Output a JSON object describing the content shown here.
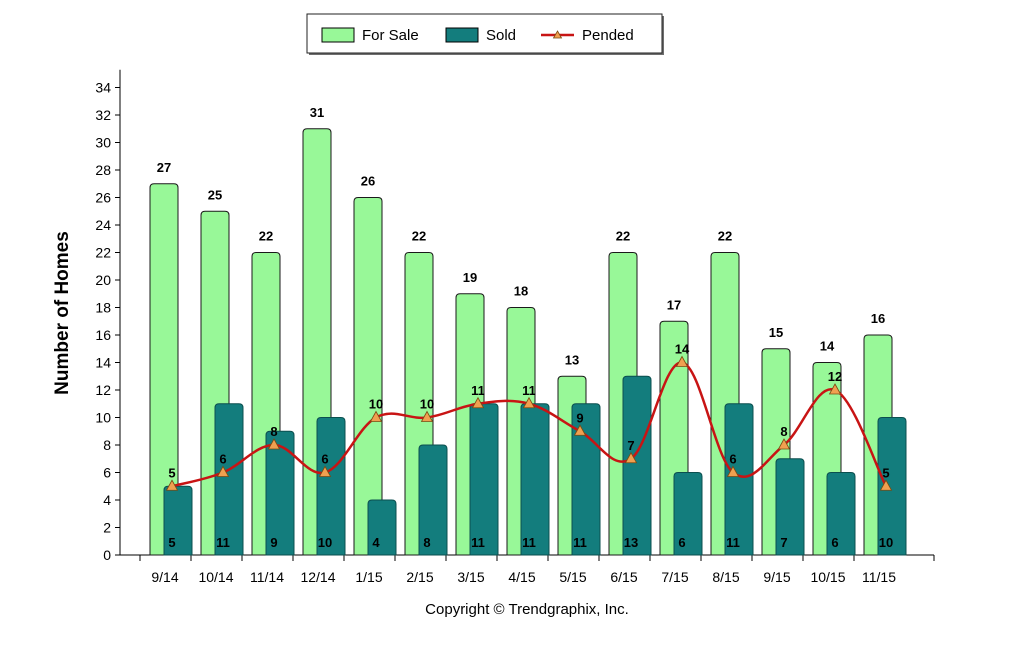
{
  "chart_data": {
    "type": "bar",
    "categories": [
      "9/14",
      "10/14",
      "11/14",
      "12/14",
      "1/15",
      "2/15",
      "3/15",
      "4/15",
      "5/15",
      "6/15",
      "7/15",
      "8/15",
      "9/15",
      "10/15",
      "11/15"
    ],
    "series": [
      {
        "name": "For Sale",
        "type": "bar",
        "color": "#98f898",
        "values": [
          27,
          25,
          22,
          31,
          26,
          22,
          19,
          18,
          13,
          22,
          17,
          22,
          15,
          14,
          16
        ]
      },
      {
        "name": "Sold",
        "type": "bar",
        "color": "#137d7d",
        "values": [
          5,
          11,
          9,
          10,
          4,
          8,
          11,
          11,
          11,
          13,
          6,
          11,
          7,
          6,
          10
        ]
      },
      {
        "name": "Pended",
        "type": "line",
        "color": "#c81414",
        "marker_color": "#f0a050",
        "values": [
          5,
          6,
          8,
          6,
          10,
          10,
          11,
          11,
          9,
          7,
          14,
          6,
          8,
          12,
          5
        ]
      }
    ],
    "ylabel": "Number of Homes",
    "ylim": [
      0,
      35
    ],
    "yticks": [
      0,
      2,
      4,
      6,
      8,
      10,
      12,
      14,
      16,
      18,
      20,
      22,
      24,
      26,
      28,
      30,
      32,
      34
    ],
    "legend_position": "top-center",
    "grid": false
  },
  "footer": {
    "copyright": "Copyright © Trendgraphix, Inc."
  }
}
